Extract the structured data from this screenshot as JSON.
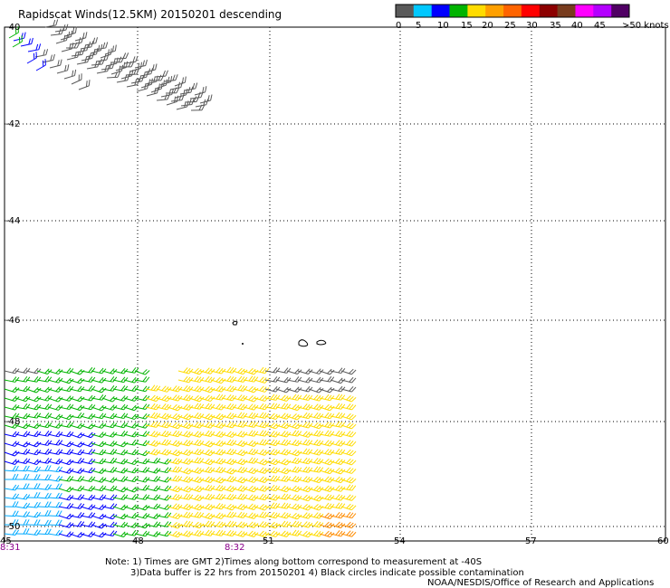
{
  "title": "Rapidscat Winds(12.5KM) 20150201 descending",
  "legend": {
    "unit_label": ">50 knots",
    "colors": [
      "#5a5a5a",
      "#00c8ff",
      "#0000ff",
      "#00b400",
      "#ffdc00",
      "#ffa000",
      "#ff6400",
      "#ff0000",
      "#8c0000",
      "#783c1e",
      "#ff00ff",
      "#b400ff",
      "#500064"
    ],
    "tick_labels": [
      "0",
      "5",
      "10",
      "15",
      "20",
      "25",
      "30",
      "35",
      "40",
      "45"
    ]
  },
  "map": {
    "lat_labels": [
      "-40",
      "-42",
      "-44",
      "-46",
      "-48",
      "-50"
    ],
    "lon_labels": [
      "45",
      "48",
      "51",
      "54",
      "57",
      "60"
    ],
    "time_labels": [
      {
        "text": "8:31",
        "color": "#8b008b"
      },
      {
        "text": "8:32",
        "color": "#8b008b"
      }
    ],
    "wind_color_ranges": [
      {
        "label": "gray",
        "color": "#5a5a5a"
      },
      {
        "label": "blue",
        "color": "#0000ff"
      },
      {
        "label": "cyan",
        "color": "#00aaff"
      },
      {
        "label": "green",
        "color": "#00b400"
      },
      {
        "label": "yellow",
        "color": "#ffdc00"
      },
      {
        "label": "orange",
        "color": "#ff8c00"
      }
    ]
  },
  "notes": {
    "line1": "Note: 1) Times are GMT 2)Times along bottom correspond to measurement at -40S",
    "line2": "3)Data buffer is 22 hrs from 20150201 4) Black circles indicate possible contamination",
    "credit": "NOAA/NESDIS/Office of Research and Applications"
  }
}
